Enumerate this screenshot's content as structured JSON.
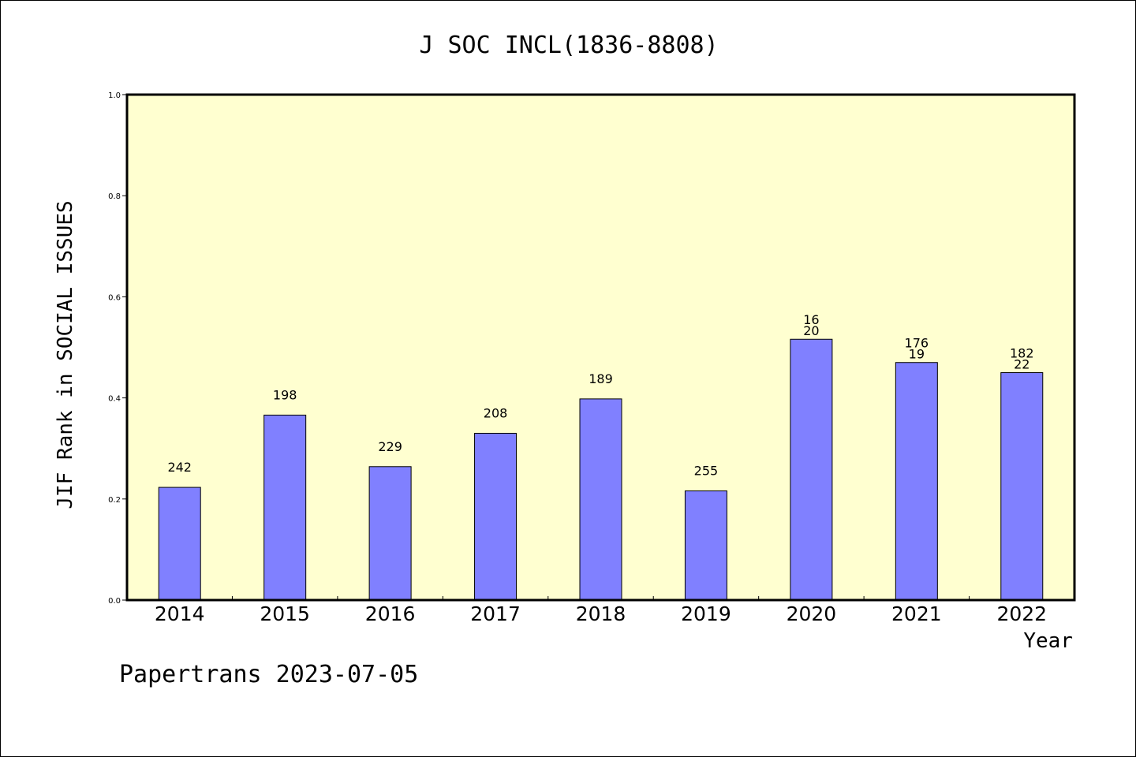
{
  "chart_data": {
    "type": "bar",
    "title": "J SOC INCL(1836-8808)",
    "xlabel": "Year",
    "ylabel": "JIF Rank in SOCIAL ISSUES",
    "ylim": [
      0,
      1
    ],
    "yticks": [
      0.0,
      0.2,
      0.4,
      0.6,
      0.8,
      1.0
    ],
    "ytick_labels": [
      "0.0",
      "0.2",
      "0.4",
      "0.6",
      "0.8",
      "1.0"
    ],
    "categories": [
      "2014",
      "2015",
      "2016",
      "2017",
      "2018",
      "2019",
      "2020",
      "2021",
      "2022"
    ],
    "values": [
      0.223,
      0.366,
      0.264,
      0.33,
      0.398,
      0.216,
      0.516,
      0.47,
      0.45
    ],
    "data_labels": [
      [
        "242"
      ],
      [
        "198"
      ],
      [
        "229"
      ],
      [
        "208"
      ],
      [
        "189"
      ],
      [
        "255"
      ],
      [
        "16",
        "20"
      ],
      [
        "176",
        "19"
      ],
      [
        "182",
        "22"
      ]
    ],
    "grid": false,
    "colors": {
      "bar": "#8080ff",
      "plot_background": "#ffffd0",
      "axis": "#000000"
    }
  },
  "footer": "Papertrans 2023-07-05"
}
